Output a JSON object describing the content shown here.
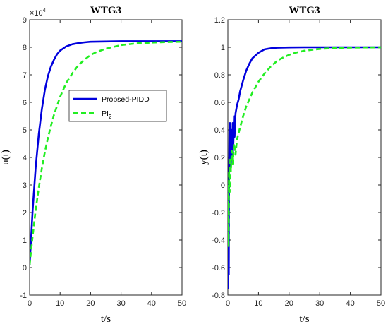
{
  "chart_data": [
    {
      "type": "line",
      "title": "WTG3",
      "xlabel": "t/s",
      "ylabel": "u(t)",
      "xlim": [
        0,
        50
      ],
      "ylim": [
        -1,
        9
      ],
      "y_exponent_label": "×10",
      "y_exponent_power": "4",
      "xticks": [
        "0",
        "10",
        "20",
        "30",
        "40",
        "50"
      ],
      "yticks": [
        "-1",
        "0",
        "1",
        "2",
        "3",
        "4",
        "5",
        "6",
        "7",
        "8",
        "9"
      ],
      "legend": {
        "position": "center",
        "entries": [
          {
            "label": "Propsed-PIDD",
            "color": "#0000dd",
            "style": "solid"
          },
          {
            "label": "PI",
            "sub": "2",
            "color": "#22ee22",
            "style": "dashed"
          }
        ]
      },
      "series": [
        {
          "name": "Propsed-PIDD",
          "color": "#0000dd",
          "style": "solid",
          "x": [
            0,
            1,
            2,
            3,
            4,
            5,
            6,
            7,
            8,
            9,
            10,
            12,
            14,
            16,
            18,
            20,
            25,
            30,
            35,
            40,
            45,
            50
          ],
          "y": [
            0.1,
            2.1,
            3.65,
            4.85,
            5.75,
            6.45,
            6.95,
            7.3,
            7.55,
            7.75,
            7.88,
            8.03,
            8.11,
            8.15,
            8.18,
            8.2,
            8.21,
            8.22,
            8.22,
            8.22,
            8.22,
            8.22
          ]
        },
        {
          "name": "PI2",
          "color": "#22ee22",
          "style": "dashed",
          "x": [
            0,
            1,
            2,
            3,
            4,
            5,
            6,
            7,
            8,
            10,
            12,
            14,
            16,
            18,
            20,
            22,
            25,
            30,
            35,
            40,
            45,
            50
          ],
          "y": [
            0.1,
            1.15,
            2.1,
            2.9,
            3.6,
            4.2,
            4.7,
            5.15,
            5.55,
            6.2,
            6.7,
            7.05,
            7.35,
            7.55,
            7.72,
            7.83,
            7.95,
            8.08,
            8.14,
            8.17,
            8.19,
            8.2
          ]
        }
      ]
    },
    {
      "type": "line",
      "title": "WTG3",
      "xlabel": "t/s",
      "ylabel": "y(t)",
      "xlim": [
        0,
        50
      ],
      "ylim": [
        -0.8,
        1.2
      ],
      "xticks": [
        "0",
        "10",
        "20",
        "30",
        "40",
        "50"
      ],
      "yticks": [
        "-0.8",
        "-0.6",
        "-0.4",
        "-0.2",
        "0",
        "0.2",
        "0.4",
        "0.6",
        "0.8",
        "1",
        "1.2"
      ],
      "series": [
        {
          "name": "Propsed-PIDD",
          "color": "#0000dd",
          "style": "solid",
          "x": [
            0,
            0.1,
            0.2,
            0.3,
            0.4,
            0.5,
            0.6,
            0.7,
            0.8,
            0.9,
            1.0,
            1.2,
            1.4,
            1.6,
            1.8,
            2.0,
            2.2,
            2.5,
            3.0,
            3.5,
            4.0,
            5,
            6,
            7,
            8,
            10,
            12,
            14,
            16,
            20,
            25,
            30,
            40,
            50
          ],
          "y": [
            0.0,
            -0.75,
            -0.3,
            -0.65,
            0.05,
            0.4,
            0.1,
            0.45,
            0.2,
            0.35,
            0.15,
            0.4,
            0.2,
            0.45,
            0.3,
            0.5,
            0.35,
            0.52,
            0.58,
            0.62,
            0.68,
            0.76,
            0.83,
            0.88,
            0.92,
            0.96,
            0.985,
            0.993,
            0.997,
            0.999,
            1.0,
            1.0,
            1.0,
            1.0
          ]
        },
        {
          "name": "PI2",
          "color": "#22ee22",
          "style": "dashed",
          "x": [
            0,
            0.2,
            0.4,
            0.6,
            0.8,
            1.0,
            1.3,
            1.6,
            2.0,
            2.5,
            3.0,
            4,
            5,
            6,
            8,
            10,
            12,
            14,
            16,
            18,
            20,
            22,
            25,
            30,
            35,
            40,
            45,
            50
          ],
          "y": [
            0.0,
            -0.45,
            0.1,
            -0.05,
            0.2,
            0.1,
            0.25,
            0.15,
            0.3,
            0.22,
            0.33,
            0.42,
            0.5,
            0.57,
            0.67,
            0.75,
            0.81,
            0.86,
            0.9,
            0.925,
            0.945,
            0.96,
            0.975,
            0.988,
            0.995,
            0.998,
            0.999,
            1.0
          ]
        }
      ]
    }
  ]
}
